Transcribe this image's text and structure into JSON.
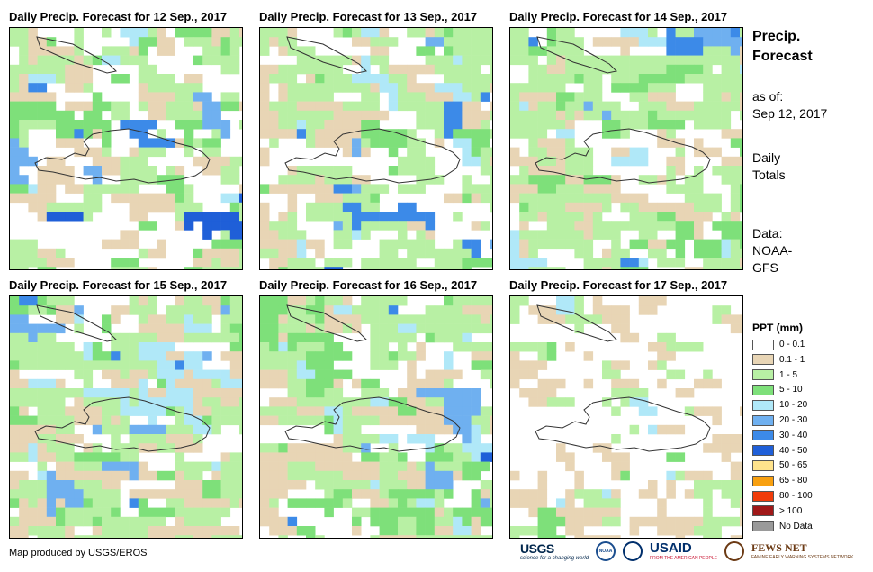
{
  "panels": [
    {
      "title": "Daily Precip. Forecast for 12 Sep., 2017"
    },
    {
      "title": "Daily Precip. Forecast for 13 Sep., 2017"
    },
    {
      "title": "Daily Precip. Forecast for 14 Sep., 2017"
    },
    {
      "title": "Daily Precip. Forecast for 15 Sep., 2017"
    },
    {
      "title": "Daily Precip. Forecast for 16 Sep., 2017"
    },
    {
      "title": "Daily Precip. Forecast for 17 Sep., 2017"
    }
  ],
  "side": {
    "title_line1": "Precip.",
    "title_line2": "Forecast",
    "asof_line1": "as of:",
    "asof_line2": "Sep 12, 2017",
    "totals_line1": "Daily",
    "totals_line2": "Totals",
    "source_line1": "Data:",
    "source_line2": "NOAA-",
    "source_line3": "GFS"
  },
  "legend": {
    "title": "PPT (mm)",
    "items": [
      {
        "label": "0 - 0.1",
        "color": "#ffffff"
      },
      {
        "label": "0.1 - 1",
        "color": "#e8d5b5"
      },
      {
        "label": "1 - 5",
        "color": "#b8f0a4"
      },
      {
        "label": "5 - 10",
        "color": "#7ee07a"
      },
      {
        "label": "10 - 20",
        "color": "#b0e8f8"
      },
      {
        "label": "20 - 30",
        "color": "#6fb0f0"
      },
      {
        "label": "30 - 40",
        "color": "#3c8ae8"
      },
      {
        "label": "40 - 50",
        "color": "#1f5fd8"
      },
      {
        "label": "50 - 65",
        "color": "#ffe38c"
      },
      {
        "label": "65 - 80",
        "color": "#f8a010"
      },
      {
        "label": "80 - 100",
        "color": "#f03c0a"
      },
      {
        "label": "> 100",
        "color": "#a01818"
      },
      {
        "label": "No Data",
        "color": "#9a9a9a"
      }
    ]
  },
  "footer": {
    "credit": "Map produced by USGS/EROS"
  },
  "logos": {
    "usgs": "USGS",
    "usgs_tagline": "science for a changing world",
    "noaa": "NOAA",
    "usaid": "USAID",
    "usaid_tagline": "FROM THE AMERICAN PEOPLE",
    "fews": "FEWS NET",
    "fews_tagline": "FAMINE EARLY WARNING SYSTEMS NETWORK"
  }
}
